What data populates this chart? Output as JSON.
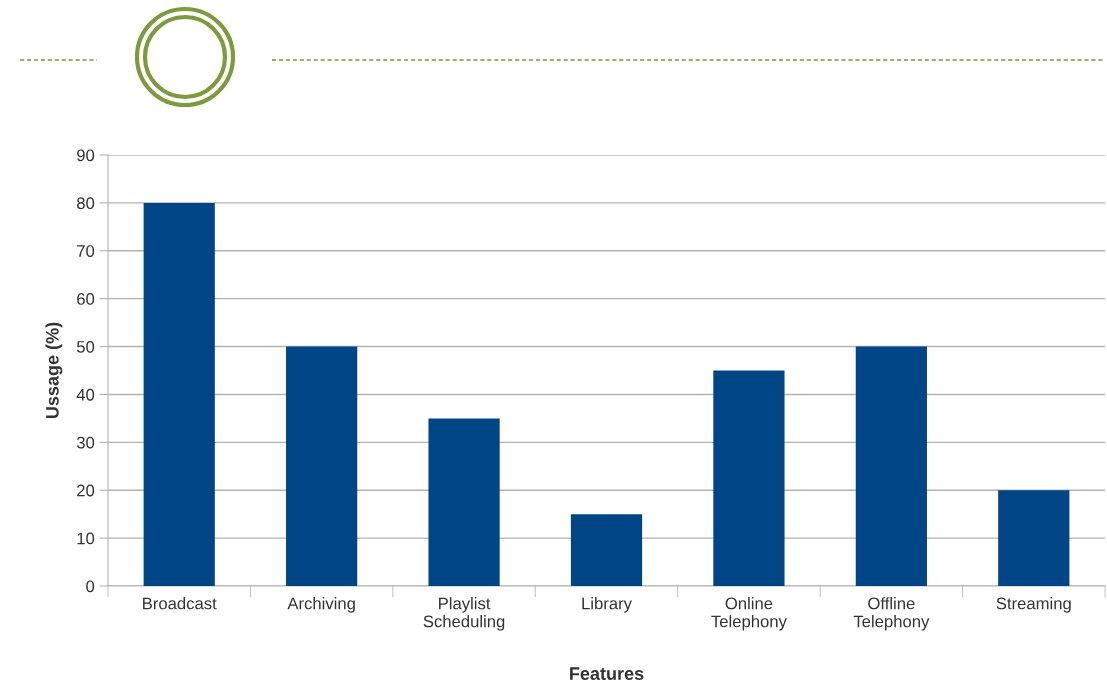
{
  "chart_data": {
    "type": "bar",
    "xlabel": "Features",
    "ylabel": "Ussage (%)",
    "categories": [
      "Broadcast",
      "Archiving",
      "Playlist\nScheduling",
      "Library",
      "Online\nTelephony",
      "Offline\nTelephony",
      "Streaming"
    ],
    "values": [
      80,
      50,
      35,
      15,
      45,
      50,
      20
    ],
    "color": "#004586",
    "ylim": [
      0,
      90
    ],
    "yticks": [
      0,
      10,
      20,
      30,
      40,
      50,
      60,
      70,
      80,
      90
    ],
    "grid": "y",
    "legend": false
  }
}
